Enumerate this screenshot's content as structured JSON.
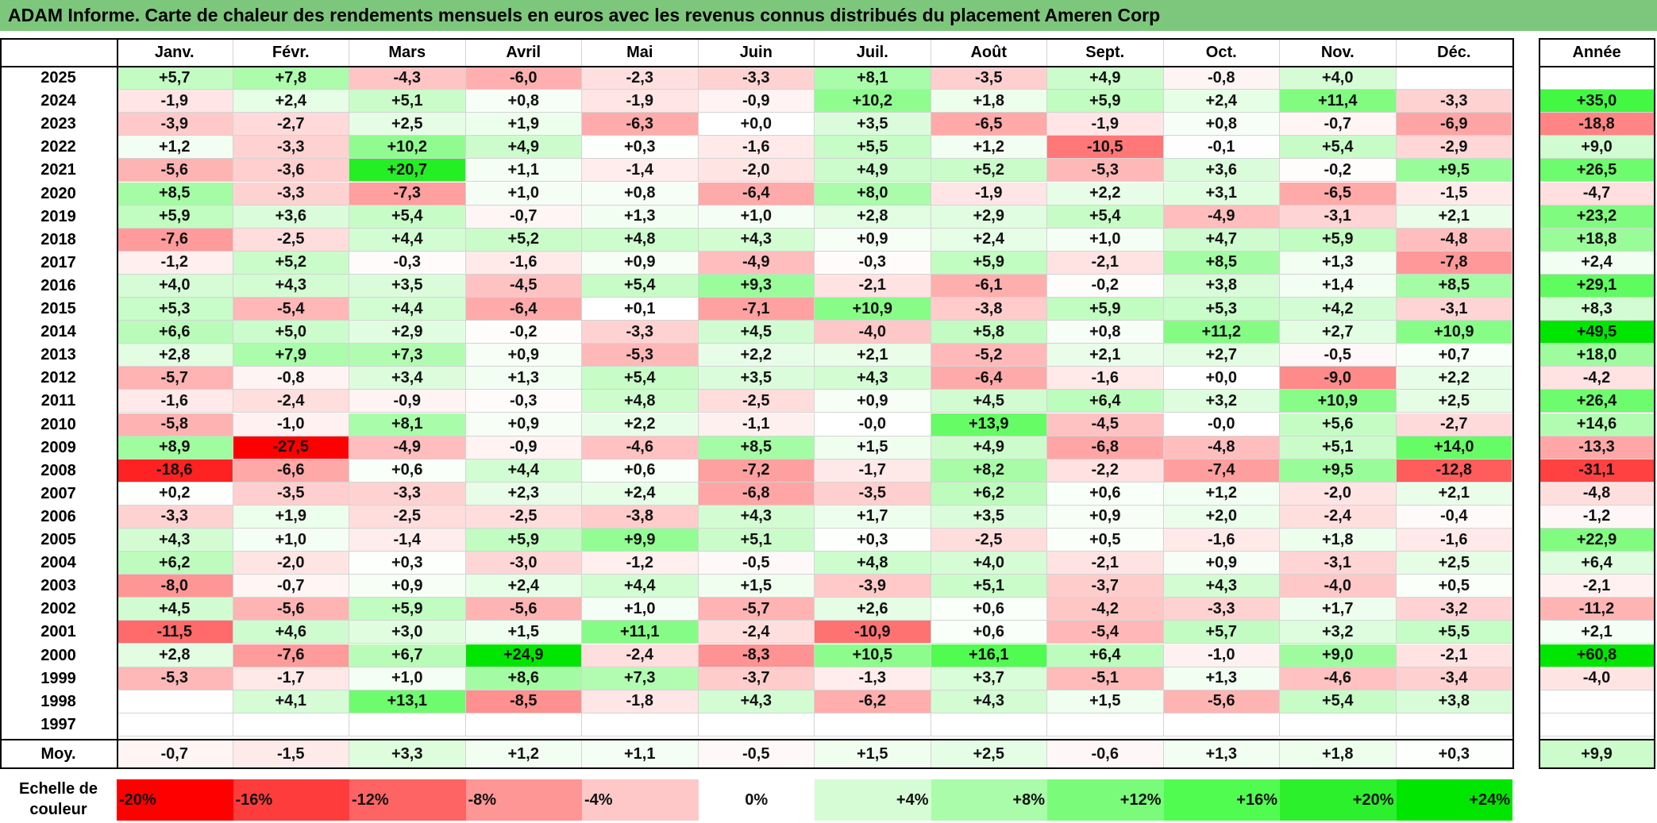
{
  "title": "ADAM Informe. Carte de chaleur des rendements mensuels en euros avec les revenus connus distribués du placement Ameren Corp",
  "chart_data": {
    "type": "heatmap",
    "title": "ADAM Informe. Carte de chaleur des rendements mensuels en euros avec les revenus connus distribués du placement Ameren Corp",
    "columns": [
      "Janv.",
      "Févr.",
      "Mars",
      "Avril",
      "Mai",
      "Juin",
      "Juil.",
      "Août",
      "Sept.",
      "Oct.",
      "Nov.",
      "Déc."
    ],
    "annual_label": "Année",
    "rows": [
      {
        "year": "2025",
        "values": [
          "+5,7",
          "+7,8",
          "-4,3",
          "-6,0",
          "-2,3",
          "-3,3",
          "+8,1",
          "-3,5",
          "+4,9",
          "-0,8",
          "+4,0",
          ""
        ],
        "annual": ""
      },
      {
        "year": "2024",
        "values": [
          "-1,9",
          "+2,4",
          "+5,1",
          "+0,8",
          "-1,9",
          "-0,9",
          "+10,2",
          "+1,8",
          "+5,9",
          "+2,4",
          "+11,4",
          "-3,3"
        ],
        "annual": "+35,0"
      },
      {
        "year": "2023",
        "values": [
          "-3,9",
          "-2,7",
          "+2,5",
          "+1,9",
          "-6,3",
          "+0,0",
          "+3,5",
          "-6,5",
          "-1,9",
          "+0,8",
          "-0,7",
          "-6,9"
        ],
        "annual": "-18,8"
      },
      {
        "year": "2022",
        "values": [
          "+1,2",
          "-3,3",
          "+10,2",
          "+4,9",
          "+0,3",
          "-1,6",
          "+5,5",
          "+1,2",
          "-10,5",
          "-0,1",
          "+5,4",
          "-2,9"
        ],
        "annual": "+9,0"
      },
      {
        "year": "2021",
        "values": [
          "-5,6",
          "-3,6",
          "+20,7",
          "+1,1",
          "-1,4",
          "-2,0",
          "+4,9",
          "+5,2",
          "-5,3",
          "+3,6",
          "-0,2",
          "+9,5"
        ],
        "annual": "+26,5"
      },
      {
        "year": "2020",
        "values": [
          "+8,5",
          "-3,3",
          "-7,3",
          "+1,0",
          "+0,8",
          "-6,4",
          "+8,0",
          "-1,9",
          "+2,2",
          "+3,1",
          "-6,5",
          "-1,5"
        ],
        "annual": "-4,7"
      },
      {
        "year": "2019",
        "values": [
          "+5,9",
          "+3,6",
          "+5,4",
          "-0,7",
          "+1,3",
          "+1,0",
          "+2,8",
          "+2,9",
          "+5,4",
          "-4,9",
          "-3,1",
          "+2,1"
        ],
        "annual": "+23,2"
      },
      {
        "year": "2018",
        "values": [
          "-7,6",
          "-2,5",
          "+4,4",
          "+5,2",
          "+4,8",
          "+4,3",
          "+0,9",
          "+2,4",
          "+1,0",
          "+4,7",
          "+5,9",
          "-4,8"
        ],
        "annual": "+18,8"
      },
      {
        "year": "2017",
        "values": [
          "-1,2",
          "+5,2",
          "-0,3",
          "-1,6",
          "+0,9",
          "-4,9",
          "-0,3",
          "+5,9",
          "-2,1",
          "+8,5",
          "+1,3",
          "-7,8"
        ],
        "annual": "+2,4"
      },
      {
        "year": "2016",
        "values": [
          "+4,0",
          "+4,3",
          "+3,5",
          "-4,5",
          "+5,4",
          "+9,3",
          "-2,1",
          "-6,1",
          "-0,2",
          "+3,8",
          "+1,4",
          "+8,5"
        ],
        "annual": "+29,1"
      },
      {
        "year": "2015",
        "values": [
          "+5,3",
          "-5,4",
          "+4,4",
          "-6,4",
          "+0,1",
          "-7,1",
          "+10,9",
          "-3,8",
          "+5,9",
          "+5,3",
          "+4,2",
          "-3,1"
        ],
        "annual": "+8,3"
      },
      {
        "year": "2014",
        "values": [
          "+6,6",
          "+5,0",
          "+2,9",
          "-0,2",
          "-3,3",
          "+4,5",
          "-4,0",
          "+5,8",
          "+0,8",
          "+11,2",
          "+2,7",
          "+10,9"
        ],
        "annual": "+49,5"
      },
      {
        "year": "2013",
        "values": [
          "+2,8",
          "+7,9",
          "+7,3",
          "+0,9",
          "-5,3",
          "+2,2",
          "+2,1",
          "-5,2",
          "+2,1",
          "+2,7",
          "-0,5",
          "+0,7"
        ],
        "annual": "+18,0"
      },
      {
        "year": "2012",
        "values": [
          "-5,7",
          "-0,8",
          "+3,4",
          "+1,3",
          "+5,4",
          "+3,5",
          "+4,3",
          "-6,4",
          "-1,6",
          "+0,0",
          "-9,0",
          "+2,2"
        ],
        "annual": "-4,2"
      },
      {
        "year": "2011",
        "values": [
          "-1,6",
          "-2,4",
          "-0,9",
          "-0,3",
          "+4,8",
          "-2,5",
          "+0,9",
          "+4,5",
          "+6,4",
          "+3,2",
          "+10,9",
          "+2,5"
        ],
        "annual": "+26,4"
      },
      {
        "year": "2010",
        "values": [
          "-5,8",
          "-1,0",
          "+8,1",
          "+0,9",
          "+2,2",
          "-1,1",
          "-0,0",
          "+13,9",
          "-4,5",
          "-0,0",
          "+5,6",
          "-2,7"
        ],
        "annual": "+14,6"
      },
      {
        "year": "2009",
        "values": [
          "+8,9",
          "-27,5",
          "-4,9",
          "-0,9",
          "-4,6",
          "+8,5",
          "+1,5",
          "+4,9",
          "-6,8",
          "-4,8",
          "+5,1",
          "+14,0"
        ],
        "annual": "-13,3"
      },
      {
        "year": "2008",
        "values": [
          "-18,6",
          "-6,6",
          "+0,6",
          "+4,4",
          "+0,6",
          "-7,2",
          "-1,7",
          "+8,2",
          "-2,2",
          "-7,4",
          "+9,5",
          "-12,8"
        ],
        "annual": "-31,1"
      },
      {
        "year": "2007",
        "values": [
          "+0,2",
          "-3,5",
          "-3,3",
          "+2,3",
          "+2,4",
          "-6,8",
          "-3,5",
          "+6,2",
          "+0,6",
          "+1,2",
          "-2,0",
          "+2,1"
        ],
        "annual": "-4,8"
      },
      {
        "year": "2006",
        "values": [
          "-3,3",
          "+1,9",
          "-2,5",
          "-2,5",
          "-3,8",
          "+4,3",
          "+1,7",
          "+3,5",
          "+0,9",
          "+2,0",
          "-2,4",
          "-0,4"
        ],
        "annual": "-1,2"
      },
      {
        "year": "2005",
        "values": [
          "+4,3",
          "+1,0",
          "-1,4",
          "+5,9",
          "+9,9",
          "+5,1",
          "+0,3",
          "-2,5",
          "+0,5",
          "-1,6",
          "+1,8",
          "-1,6"
        ],
        "annual": "+22,9"
      },
      {
        "year": "2004",
        "values": [
          "+6,2",
          "-2,0",
          "+0,3",
          "-3,0",
          "-1,2",
          "-0,5",
          "+4,8",
          "+4,0",
          "-2,1",
          "+0,9",
          "-3,1",
          "+2,5"
        ],
        "annual": "+6,4"
      },
      {
        "year": "2003",
        "values": [
          "-8,0",
          "-0,7",
          "+0,9",
          "+2,4",
          "+4,4",
          "+1,5",
          "-3,9",
          "+5,1",
          "-3,7",
          "+4,3",
          "-4,0",
          "+0,5"
        ],
        "annual": "-2,1"
      },
      {
        "year": "2002",
        "values": [
          "+4,5",
          "-5,6",
          "+5,9",
          "-5,6",
          "+1,0",
          "-5,7",
          "+2,6",
          "+0,6",
          "-4,2",
          "-3,3",
          "+1,7",
          "-3,2"
        ],
        "annual": "-11,2"
      },
      {
        "year": "2001",
        "values": [
          "-11,5",
          "+4,6",
          "+3,0",
          "+1,5",
          "+11,1",
          "-2,4",
          "-10,9",
          "+0,6",
          "-5,4",
          "+5,7",
          "+3,2",
          "+5,5"
        ],
        "annual": "+2,1"
      },
      {
        "year": "2000",
        "values": [
          "+2,8",
          "-7,6",
          "+6,7",
          "+24,9",
          "-2,4",
          "-8,3",
          "+10,5",
          "+16,1",
          "+6,4",
          "-1,0",
          "+9,0",
          "-2,1"
        ],
        "annual": "+60,8"
      },
      {
        "year": "1999",
        "values": [
          "-5,3",
          "-1,7",
          "+1,0",
          "+8,6",
          "+7,3",
          "-3,7",
          "-1,3",
          "+3,7",
          "-5,1",
          "+1,3",
          "-4,6",
          "-3,4"
        ],
        "annual": "-4,0"
      },
      {
        "year": "1998",
        "values": [
          "",
          "+4,1",
          "+13,1",
          "-8,5",
          "-1,8",
          "+4,3",
          "-6,2",
          "+4,3",
          "+1,5",
          "-5,6",
          "+5,4",
          "+3,8"
        ],
        "annual": ""
      },
      {
        "year": "1997",
        "values": [
          "",
          "",
          "",
          "",
          "",
          "",
          "",
          "",
          "",
          "",
          "",
          ""
        ],
        "annual": ""
      }
    ],
    "average": {
      "label": "Moy.",
      "values": [
        "-0,7",
        "-1,5",
        "+3,3",
        "+1,2",
        "+1,1",
        "-0,5",
        "+1,5",
        "+2,5",
        "-0,6",
        "+1,3",
        "+1,8",
        "+0,3"
      ],
      "annual": "+9,9"
    },
    "scale": {
      "label_line1": "Echelle de",
      "label_line2": "couleur",
      "stops": [
        "-20%",
        "-16%",
        "-12%",
        "-8%",
        "-4%",
        "0%",
        "+4%",
        "+8%",
        "+12%",
        "+16%",
        "+20%",
        "+24%"
      ],
      "stop_values": [
        -20,
        -16,
        -12,
        -8,
        -4,
        0,
        4,
        8,
        12,
        16,
        20,
        24
      ],
      "colors": [
        "#ff0000",
        "#ff3c3c",
        "#ff6464",
        "#ff9696",
        "#ffc8c8",
        "#ffffff",
        "#d6fcd6",
        "#aafcaa",
        "#7afc7a",
        "#50fc50",
        "#2cf02c",
        "#00e600"
      ]
    }
  }
}
